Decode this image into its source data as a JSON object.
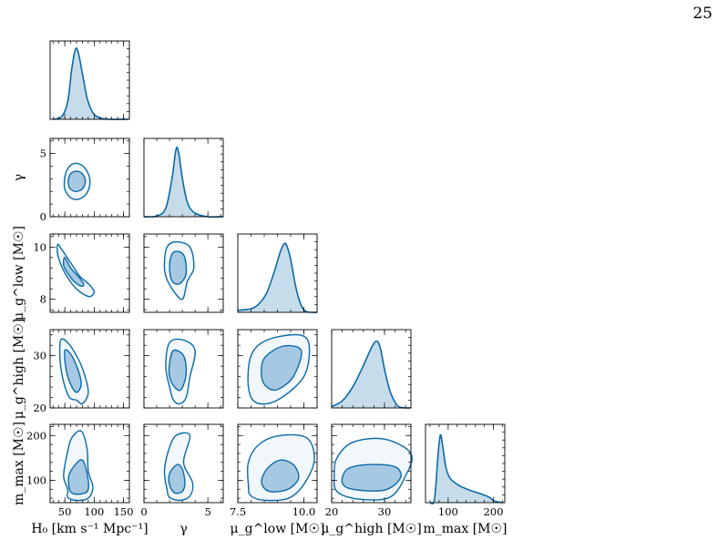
{
  "page": {
    "number": "25"
  },
  "colors": {
    "line": "#0a6aa8",
    "fill_1d": "#c7dcea",
    "fill_outer": "#f1f7fb",
    "fill_inner": "#a7c8e2"
  },
  "chart_data": {
    "type": "corner",
    "parameters": [
      {
        "key": "H0",
        "xlabel": "H₀ [km s⁻¹ Mpc⁻¹]",
        "ylabel": "",
        "range": [
          25,
          160
        ],
        "ticks": [
          50,
          100,
          150
        ],
        "tick_labels": [
          "50",
          "100",
          "150"
        ]
      },
      {
        "key": "gamma",
        "xlabel": "γ",
        "ylabel": "γ",
        "range": [
          0,
          6.2
        ],
        "ticks": [
          0,
          5
        ],
        "tick_labels": [
          "0",
          "5"
        ]
      },
      {
        "key": "mu_low",
        "xlabel": "μ_g^low [M☉]",
        "ylabel": "μ_g^low [M☉]",
        "range": [
          7.5,
          10.5
        ],
        "ticks": [
          7.5,
          10.0
        ],
        "tick_labels": [
          "7.5",
          "10.0"
        ],
        "yticks": [
          8,
          10
        ],
        "ytick_labels": [
          "8",
          "10"
        ]
      },
      {
        "key": "mu_high",
        "xlabel": "μ_g^high [M☉]",
        "ylabel": "μ_g^high [M☉]",
        "range": [
          20,
          35
        ],
        "ticks": [
          20,
          30
        ],
        "tick_labels": [
          "20",
          "30"
        ]
      },
      {
        "key": "mmax",
        "xlabel": "m_max [M☉]",
        "ylabel": "m_max [M☉]",
        "range": [
          50,
          225
        ],
        "ticks": [
          100,
          200
        ],
        "tick_labels": [
          "100",
          "200"
        ]
      }
    ],
    "y_ticks": {
      "gamma": {
        "ticks": [
          0,
          5
        ],
        "labels": [
          "0",
          "5"
        ]
      },
      "mu_low": {
        "ticks": [
          8,
          10
        ],
        "labels": [
          "8",
          "10"
        ]
      },
      "mu_high": {
        "ticks": [
          20,
          30
        ],
        "labels": [
          "20",
          "30"
        ]
      },
      "mmax": {
        "ticks": [
          100,
          200
        ],
        "labels": [
          "100",
          "200"
        ]
      }
    },
    "marginals": {
      "H0": [
        [
          30,
          0
        ],
        [
          45,
          0.04
        ],
        [
          55,
          0.25
        ],
        [
          62,
          0.72
        ],
        [
          68,
          0.99
        ],
        [
          73,
          0.95
        ],
        [
          80,
          0.65
        ],
        [
          88,
          0.3
        ],
        [
          98,
          0.09
        ],
        [
          110,
          0.02
        ],
        [
          125,
          0
        ],
        [
          158,
          0
        ]
      ],
      "gamma": [
        [
          0,
          0
        ],
        [
          1.0,
          0.01
        ],
        [
          1.7,
          0.12
        ],
        [
          2.2,
          0.55
        ],
        [
          2.5,
          0.95
        ],
        [
          2.7,
          0.92
        ],
        [
          3.0,
          0.55
        ],
        [
          3.4,
          0.2
        ],
        [
          4.0,
          0.05
        ],
        [
          5.0,
          0
        ],
        [
          6.2,
          0
        ]
      ],
      "mu_low": [
        [
          7.5,
          0.03
        ],
        [
          8.0,
          0.05
        ],
        [
          8.3,
          0.12
        ],
        [
          8.6,
          0.28
        ],
        [
          8.9,
          0.6
        ],
        [
          9.1,
          0.85
        ],
        [
          9.25,
          0.97
        ],
        [
          9.35,
          0.95
        ],
        [
          9.5,
          0.75
        ],
        [
          9.7,
          0.35
        ],
        [
          9.9,
          0.1
        ],
        [
          10.1,
          0.01
        ],
        [
          10.5,
          0
        ]
      ],
      "mu_high": [
        [
          20,
          0.02
        ],
        [
          22,
          0.1
        ],
        [
          24,
          0.3
        ],
        [
          26,
          0.6
        ],
        [
          27.5,
          0.85
        ],
        [
          28.5,
          0.95
        ],
        [
          29.2,
          0.85
        ],
        [
          30,
          0.55
        ],
        [
          31,
          0.25
        ],
        [
          32,
          0.08
        ],
        [
          33,
          0.01
        ],
        [
          35,
          0
        ]
      ],
      "mmax": [
        [
          60,
          0
        ],
        [
          70,
          0.05
        ],
        [
          78,
          0.7
        ],
        [
          83,
          0.96
        ],
        [
          88,
          0.8
        ],
        [
          95,
          0.5
        ],
        [
          105,
          0.34
        ],
        [
          125,
          0.24
        ],
        [
          150,
          0.17
        ],
        [
          170,
          0.13
        ],
        [
          190,
          0.08
        ],
        [
          200,
          0.03
        ],
        [
          210,
          0.01
        ],
        [
          222,
          0
        ]
      ]
    },
    "contours": {
      "gamma|H0": {
        "outer": [
          [
            55,
            3.8
          ],
          [
            65,
            4.2
          ],
          [
            78,
            4.1
          ],
          [
            88,
            3.6
          ],
          [
            93,
            2.8
          ],
          [
            88,
            1.9
          ],
          [
            75,
            1.4
          ],
          [
            60,
            1.5
          ],
          [
            50,
            2.2
          ],
          [
            50,
            3.1
          ]
        ],
        "inner": [
          [
            60,
            3.4
          ],
          [
            70,
            3.6
          ],
          [
            80,
            3.4
          ],
          [
            85,
            2.8
          ],
          [
            80,
            2.2
          ],
          [
            68,
            2.0
          ],
          [
            58,
            2.3
          ],
          [
            56,
            2.9
          ]
        ]
      },
      "mu_low|H0": {
        "outer": [
          [
            38,
            10.1
          ],
          [
            45,
            9.9
          ],
          [
            60,
            9.4
          ],
          [
            75,
            8.9
          ],
          [
            90,
            8.6
          ],
          [
            100,
            8.3
          ],
          [
            92,
            8.1
          ],
          [
            75,
            8.3
          ],
          [
            62,
            8.6
          ],
          [
            48,
            9.1
          ],
          [
            38,
            9.7
          ]
        ],
        "inner": [
          [
            50,
            9.6
          ],
          [
            60,
            9.2
          ],
          [
            72,
            8.9
          ],
          [
            82,
            8.6
          ],
          [
            78,
            8.5
          ],
          [
            65,
            8.7
          ],
          [
            55,
            9.0
          ],
          [
            48,
            9.3
          ]
        ]
      },
      "mu_high|H0": {
        "outer": [
          [
            43,
            33
          ],
          [
            55,
            32.5
          ],
          [
            70,
            30
          ],
          [
            82,
            27
          ],
          [
            90,
            23
          ],
          [
            80,
            20.8
          ],
          [
            70,
            21.5
          ],
          [
            58,
            22
          ],
          [
            48,
            25
          ],
          [
            42,
            29
          ]
        ],
        "inner": [
          [
            50,
            31
          ],
          [
            60,
            30.3
          ],
          [
            72,
            27.5
          ],
          [
            78,
            24.5
          ],
          [
            70,
            23
          ],
          [
            60,
            24.5
          ],
          [
            52,
            27.5
          ]
        ]
      },
      "mmax|H0": {
        "outer": [
          [
            55,
            80
          ],
          [
            48,
            110
          ],
          [
            55,
            165
          ],
          [
            62,
            195
          ],
          [
            78,
            210
          ],
          [
            88,
            170
          ],
          [
            90,
            120
          ],
          [
            98,
            85
          ],
          [
            90,
            60
          ],
          [
            70,
            55
          ],
          [
            55,
            62
          ]
        ],
        "inner": [
          [
            58,
            80
          ],
          [
            57,
            110
          ],
          [
            68,
            135
          ],
          [
            80,
            145
          ],
          [
            88,
            115
          ],
          [
            90,
            80
          ],
          [
            80,
            70
          ],
          [
            65,
            70
          ]
        ]
      },
      "mu_low|gamma": {
        "outer": [
          [
            1.6,
            9.4
          ],
          [
            1.8,
            10.0
          ],
          [
            2.5,
            10.2
          ],
          [
            3.6,
            10.0
          ],
          [
            3.9,
            9.2
          ],
          [
            3.4,
            8.7
          ],
          [
            3.0,
            8.0
          ],
          [
            2.2,
            8.4
          ],
          [
            1.7,
            8.9
          ]
        ],
        "inner": [
          [
            2.0,
            9.3
          ],
          [
            2.3,
            9.8
          ],
          [
            3.1,
            9.7
          ],
          [
            3.3,
            9.0
          ],
          [
            2.8,
            8.6
          ],
          [
            2.2,
            8.7
          ]
        ]
      },
      "mu_high|gamma": {
        "outer": [
          [
            1.7,
            28
          ],
          [
            2.0,
            32.5
          ],
          [
            3.1,
            33
          ],
          [
            4.0,
            31
          ],
          [
            3.6,
            26
          ],
          [
            3.3,
            22
          ],
          [
            2.8,
            20.8
          ],
          [
            2.3,
            21.5
          ],
          [
            2.0,
            24
          ]
        ],
        "inner": [
          [
            2.0,
            28.5
          ],
          [
            2.3,
            31
          ],
          [
            3.1,
            30
          ],
          [
            3.3,
            26.5
          ],
          [
            2.9,
            23.5
          ],
          [
            2.4,
            24
          ],
          [
            2.0,
            26
          ]
        ]
      },
      "mmax|gamma": {
        "outer": [
          [
            1.8,
            80
          ],
          [
            1.6,
            120
          ],
          [
            1.9,
            165
          ],
          [
            2.5,
            200
          ],
          [
            3.6,
            200
          ],
          [
            3.1,
            140
          ],
          [
            3.8,
            95
          ],
          [
            3.6,
            65
          ],
          [
            2.8,
            55
          ],
          [
            2.0,
            62
          ]
        ],
        "inner": [
          [
            2.0,
            90
          ],
          [
            2.0,
            115
          ],
          [
            2.6,
            135
          ],
          [
            3.0,
            125
          ],
          [
            3.2,
            95
          ],
          [
            3.0,
            75
          ],
          [
            2.4,
            72
          ]
        ]
      },
      "mu_high|mu_low": {
        "outer": [
          [
            7.9,
            24
          ],
          [
            8.0,
            30
          ],
          [
            8.6,
            33
          ],
          [
            9.8,
            34
          ],
          [
            10.2,
            32
          ],
          [
            10.0,
            26
          ],
          [
            9.0,
            21.5
          ],
          [
            8.2,
            21
          ]
        ],
        "inner": [
          [
            8.4,
            26
          ],
          [
            8.5,
            29.5
          ],
          [
            9.2,
            31.8
          ],
          [
            9.9,
            31
          ],
          [
            9.6,
            26
          ],
          [
            9.0,
            23.5
          ],
          [
            8.6,
            24
          ]
        ]
      },
      "mmax|mu_low": {
        "outer": [
          [
            7.9,
            90
          ],
          [
            7.9,
            140
          ],
          [
            8.3,
            180
          ],
          [
            9.1,
            200
          ],
          [
            10.1,
            195
          ],
          [
            10.4,
            150
          ],
          [
            10.1,
            100
          ],
          [
            9.5,
            62
          ],
          [
            8.6,
            55
          ],
          [
            8.0,
            65
          ]
        ],
        "inner": [
          [
            8.4,
            95
          ],
          [
            8.6,
            125
          ],
          [
            9.1,
            145
          ],
          [
            9.6,
            135
          ],
          [
            9.8,
            105
          ],
          [
            9.4,
            80
          ],
          [
            8.7,
            75
          ]
        ]
      },
      "mmax|mu_high": {
        "outer": [
          [
            20.5,
            110
          ],
          [
            21,
            150
          ],
          [
            24,
            185
          ],
          [
            30,
            192
          ],
          [
            35,
            160
          ],
          [
            34,
            110
          ],
          [
            31,
            62
          ],
          [
            25,
            58
          ],
          [
            21,
            75
          ]
        ],
        "inner": [
          [
            22,
            95
          ],
          [
            23,
            125
          ],
          [
            27,
            135
          ],
          [
            32,
            130
          ],
          [
            33,
            105
          ],
          [
            30,
            78
          ],
          [
            24,
            80
          ]
        ]
      }
    }
  }
}
